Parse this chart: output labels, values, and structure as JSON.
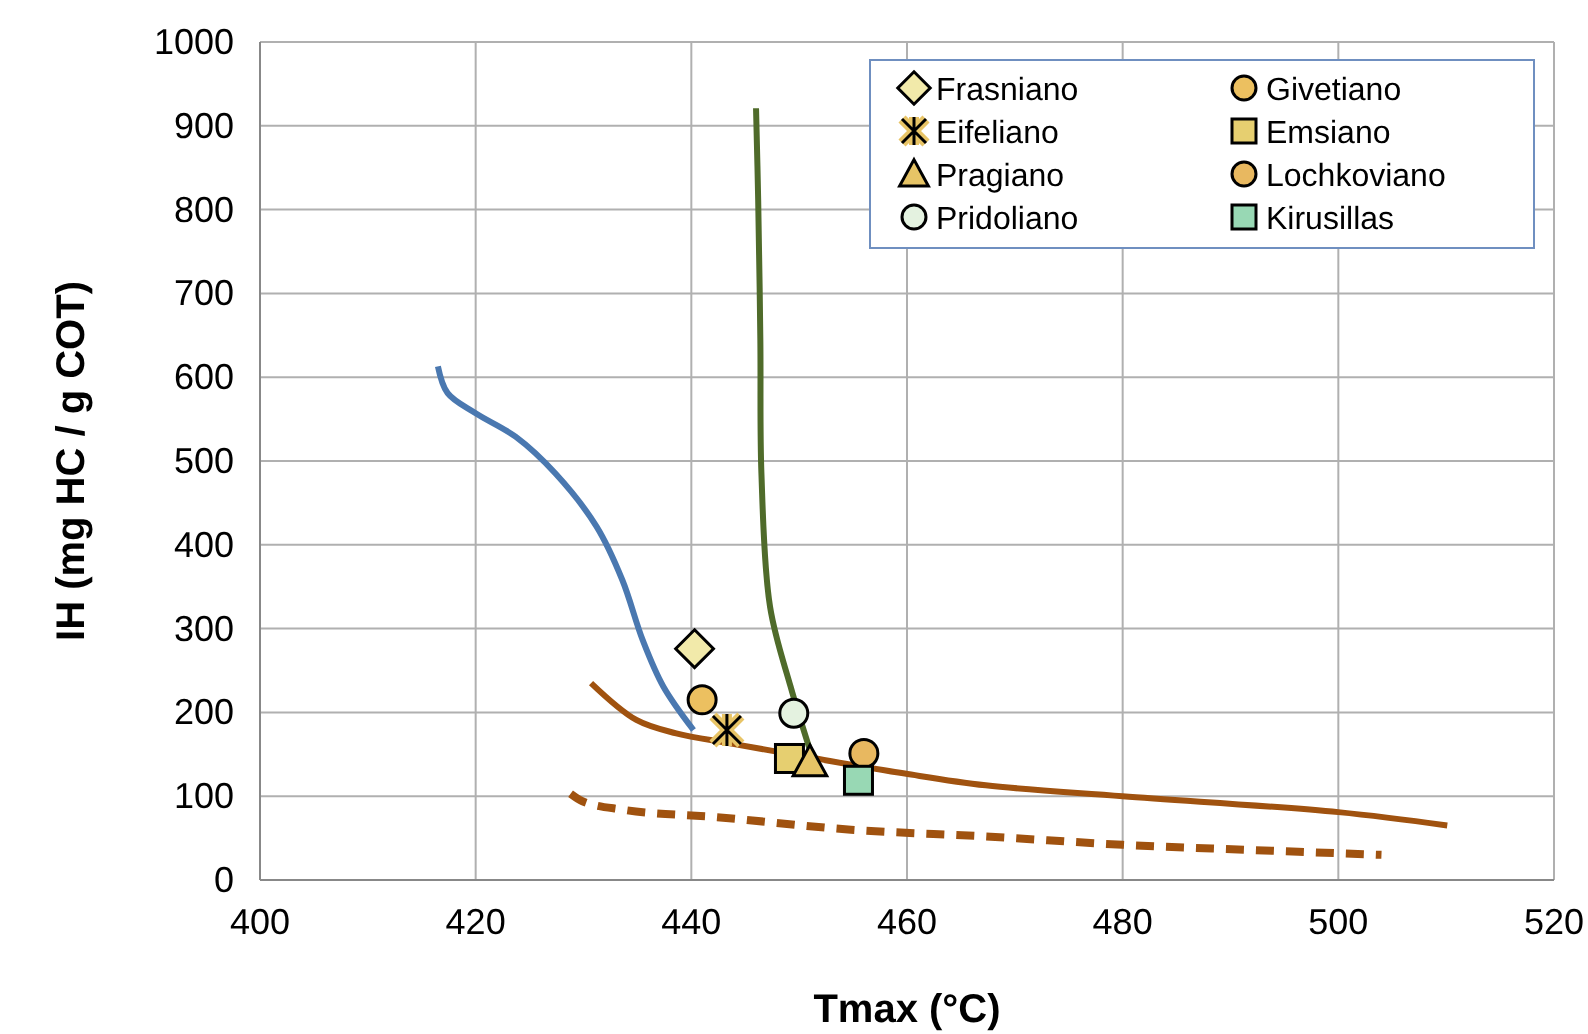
{
  "chart_data": {
    "type": "scatter",
    "xlabel": "Tmax (°C)",
    "ylabel": "IH (mg HC / g COT)",
    "xlim": [
      400,
      520
    ],
    "xticks": [
      400,
      420,
      440,
      460,
      480,
      500,
      520
    ],
    "ylim": [
      0,
      1000
    ],
    "yticks": [
      0,
      100,
      200,
      300,
      400,
      500,
      600,
      700,
      800,
      900,
      1000
    ],
    "grid": true,
    "legend": "top right",
    "series": [
      {
        "type": "line",
        "color": "#4a78b0",
        "line_style": "solid",
        "x": [
          416.5,
          417.4,
          420,
          423.7,
          427.4,
          431.2,
          433.6,
          435.5,
          437.4,
          440.2
        ],
        "values": [
          613,
          581,
          557,
          529,
          485,
          422,
          358,
          286,
          231,
          179
        ]
      },
      {
        "type": "line",
        "color": "#4f6b2a",
        "line_style": "solid",
        "x": [
          446,
          446.2,
          446.4,
          446.5,
          447.3,
          449.2,
          451.1
        ],
        "values": [
          921,
          811,
          644,
          485,
          326,
          231,
          151
        ]
      },
      {
        "type": "line",
        "color": "#a0520f",
        "line_style": "solid",
        "x": [
          430.7,
          434.9,
          438.6,
          443.6,
          451.1,
          459.8,
          467.3,
          480,
          500,
          510.1
        ],
        "values": [
          235,
          191,
          175,
          163,
          146,
          127,
          113,
          100,
          81,
          65
        ]
      },
      {
        "type": "line",
        "color": "#a0520f",
        "line_style": "dashed",
        "x": [
          428.8,
          429.9,
          433.6,
          442.4,
          454.8,
          467.3,
          480,
          491.6,
          504
        ],
        "values": [
          103,
          94,
          84,
          75,
          60,
          52,
          42,
          36,
          30
        ]
      },
      {
        "name": "Frasniano",
        "color": "#f2eaaa",
        "marker": "diamond",
        "x": [
          440.3
        ],
        "values": [
          276
        ]
      },
      {
        "name": "Givetiano",
        "color": "#ecc060",
        "marker": "circle",
        "x": [
          441
        ],
        "values": [
          215
        ]
      },
      {
        "name": "Eifeliano",
        "color": "#e8c466",
        "marker": "cross",
        "x": [
          443.3
        ],
        "values": [
          179
        ]
      },
      {
        "name": "Emsiano",
        "color": "#e6cf70",
        "marker": "square",
        "x": [
          449.1
        ],
        "values": [
          145
        ]
      },
      {
        "name": "Pragiano",
        "color": "#e6c466",
        "marker": "triangle",
        "x": [
          451
        ],
        "values": [
          141
        ]
      },
      {
        "name": "Lochkoviano",
        "color": "#e8b860",
        "marker": "circle",
        "x": [
          456
        ],
        "values": [
          151
        ]
      },
      {
        "name": "Pridoliano",
        "color": "#e4f2e0",
        "marker": "circle",
        "x": [
          449.5
        ],
        "values": [
          199
        ]
      },
      {
        "name": "Kirusillas",
        "color": "#98d8b4",
        "marker": "square",
        "x": [
          455.5
        ],
        "values": [
          119
        ]
      }
    ]
  }
}
